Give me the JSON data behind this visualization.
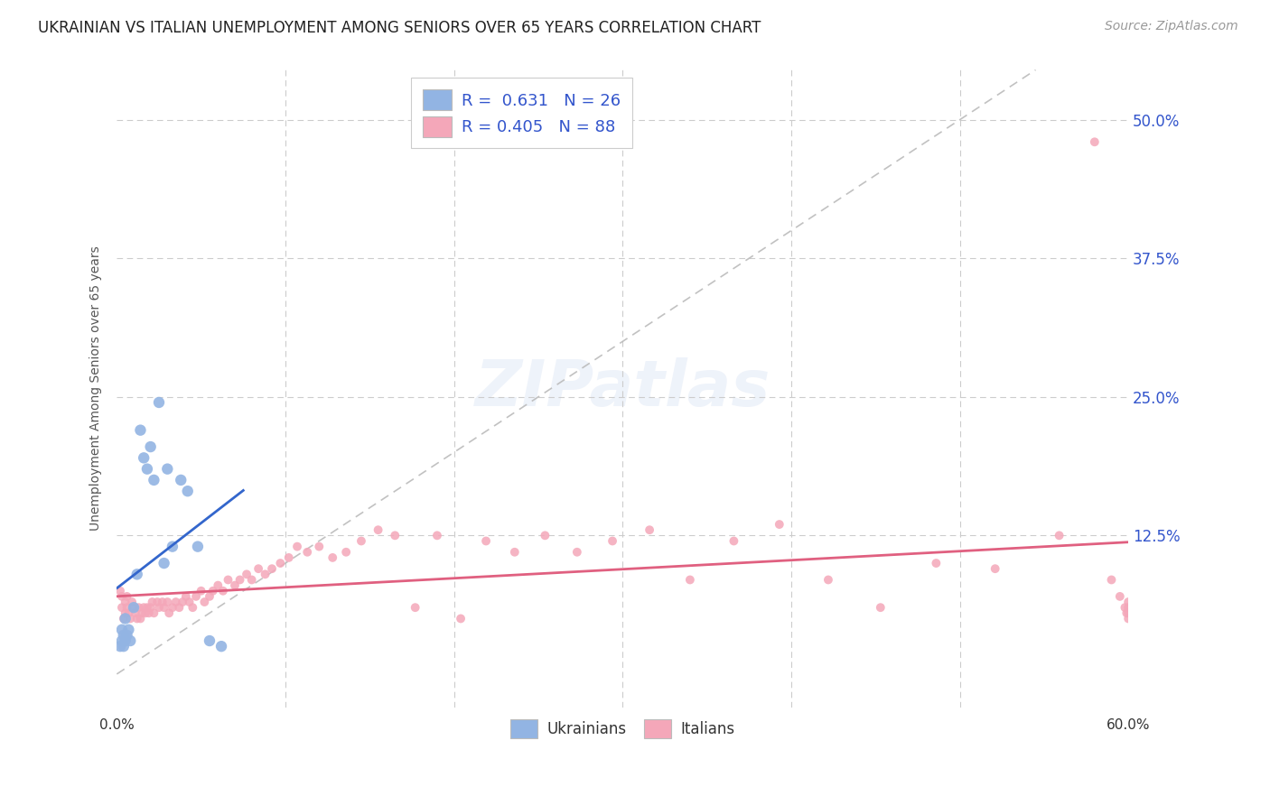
{
  "title": "UKRAINIAN VS ITALIAN UNEMPLOYMENT AMONG SENIORS OVER 65 YEARS CORRELATION CHART",
  "source": "Source: ZipAtlas.com",
  "ylabel": "Unemployment Among Seniors over 65 years",
  "ytick_values": [
    0.0,
    0.125,
    0.25,
    0.375,
    0.5
  ],
  "ytick_labels": [
    "",
    "12.5%",
    "25.0%",
    "37.5%",
    "50.0%"
  ],
  "xlim": [
    0.0,
    0.6
  ],
  "ylim": [
    -0.03,
    0.545
  ],
  "color_ukrainian": "#92B4E3",
  "color_italian": "#F4A7B9",
  "color_blue_text": "#3355CC",
  "color_line_ukrainian": "#3366CC",
  "color_line_italian": "#E06080",
  "color_diagonal": "#BBBBBB",
  "scatter_size_ukrainian": 80,
  "scatter_size_italian": 50,
  "ukrainians_x": [
    0.002,
    0.003,
    0.003,
    0.004,
    0.004,
    0.005,
    0.005,
    0.006,
    0.007,
    0.008,
    0.01,
    0.012,
    0.014,
    0.016,
    0.018,
    0.02,
    0.022,
    0.025,
    0.028,
    0.03,
    0.033,
    0.038,
    0.042,
    0.048,
    0.055,
    0.062
  ],
  "ukrainians_y": [
    0.025,
    0.03,
    0.04,
    0.025,
    0.035,
    0.03,
    0.05,
    0.035,
    0.04,
    0.03,
    0.06,
    0.09,
    0.22,
    0.195,
    0.185,
    0.205,
    0.175,
    0.245,
    0.1,
    0.185,
    0.115,
    0.175,
    0.165,
    0.115,
    0.03,
    0.025
  ],
  "italians_x": [
    0.002,
    0.003,
    0.003,
    0.004,
    0.005,
    0.005,
    0.006,
    0.006,
    0.007,
    0.008,
    0.009,
    0.01,
    0.011,
    0.012,
    0.013,
    0.014,
    0.015,
    0.016,
    0.017,
    0.018,
    0.019,
    0.02,
    0.021,
    0.022,
    0.024,
    0.025,
    0.027,
    0.028,
    0.03,
    0.031,
    0.033,
    0.035,
    0.037,
    0.039,
    0.041,
    0.043,
    0.045,
    0.047,
    0.05,
    0.052,
    0.055,
    0.057,
    0.06,
    0.063,
    0.066,
    0.07,
    0.073,
    0.077,
    0.08,
    0.084,
    0.088,
    0.092,
    0.097,
    0.102,
    0.107,
    0.113,
    0.12,
    0.128,
    0.136,
    0.145,
    0.155,
    0.165,
    0.177,
    0.19,
    0.204,
    0.219,
    0.236,
    0.254,
    0.273,
    0.294,
    0.316,
    0.34,
    0.366,
    0.393,
    0.422,
    0.453,
    0.486,
    0.521,
    0.559,
    0.58,
    0.59,
    0.595,
    0.598,
    0.599,
    0.6,
    0.6,
    0.6,
    0.6
  ],
  "italians_y": [
    0.075,
    0.06,
    0.07,
    0.05,
    0.065,
    0.055,
    0.06,
    0.07,
    0.055,
    0.05,
    0.065,
    0.06,
    0.055,
    0.05,
    0.06,
    0.05,
    0.055,
    0.06,
    0.055,
    0.06,
    0.055,
    0.06,
    0.065,
    0.055,
    0.065,
    0.06,
    0.065,
    0.06,
    0.065,
    0.055,
    0.06,
    0.065,
    0.06,
    0.065,
    0.07,
    0.065,
    0.06,
    0.07,
    0.075,
    0.065,
    0.07,
    0.075,
    0.08,
    0.075,
    0.085,
    0.08,
    0.085,
    0.09,
    0.085,
    0.095,
    0.09,
    0.095,
    0.1,
    0.105,
    0.115,
    0.11,
    0.115,
    0.105,
    0.11,
    0.12,
    0.13,
    0.125,
    0.06,
    0.125,
    0.05,
    0.12,
    0.11,
    0.125,
    0.11,
    0.12,
    0.13,
    0.085,
    0.12,
    0.135,
    0.085,
    0.06,
    0.1,
    0.095,
    0.125,
    0.48,
    0.085,
    0.07,
    0.06,
    0.055,
    0.06,
    0.065,
    0.055,
    0.05
  ]
}
